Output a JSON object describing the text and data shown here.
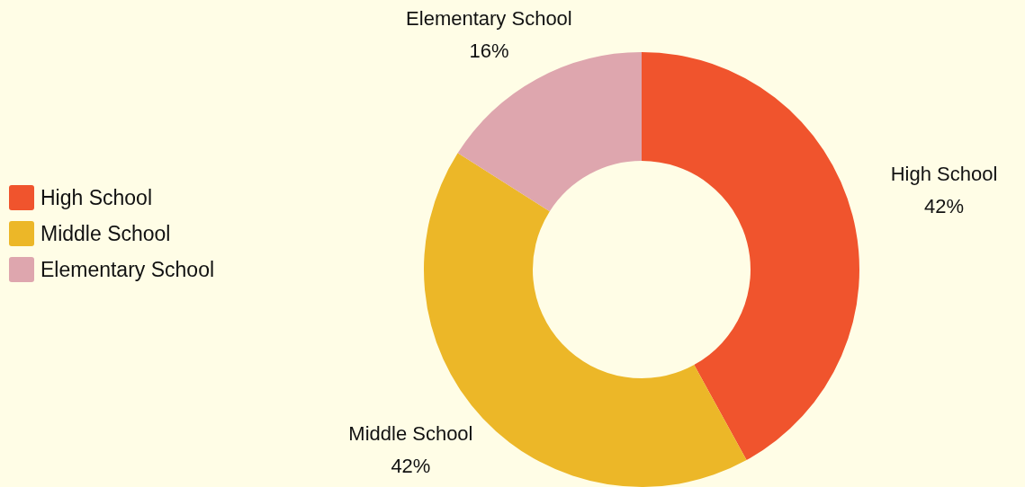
{
  "chart_data": {
    "type": "donut",
    "categories": [
      "High School",
      "Middle School",
      "Elementary School"
    ],
    "values": [
      42,
      42,
      16
    ],
    "colors": [
      "#f0542d",
      "#ecb728",
      "#dea6ae"
    ],
    "value_labels": [
      "42%",
      "42%",
      "16%"
    ],
    "legend": "left"
  }
}
